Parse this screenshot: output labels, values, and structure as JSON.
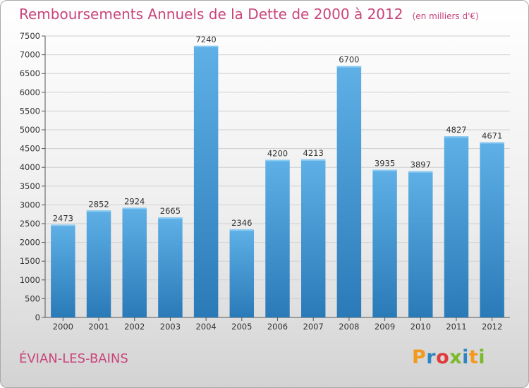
{
  "title": "Remboursements Annuels de la Dette de 2000 à 2012",
  "unit_note": "(en milliers d'€)",
  "commune": "ÉVIAN-LES-BAINS",
  "logo": {
    "text": "Proxiti",
    "letter_colors": [
      "#f29a1f",
      "#2e86c1",
      "#e03a3a",
      "#7ab929",
      "#2e86c1",
      "#f29a1f",
      "#7ab929"
    ]
  },
  "colors": {
    "bar_top": "#5eb0e6",
    "bar_bottom": "#2a7ab8",
    "title": "#c8457a",
    "grid": "#d0d0d0"
  },
  "chart_data": {
    "type": "bar",
    "categories": [
      "2000",
      "2001",
      "2002",
      "2003",
      "2004",
      "2005",
      "2006",
      "2007",
      "2008",
      "2009",
      "2010",
      "2011",
      "2012"
    ],
    "values": [
      2473,
      2852,
      2924,
      2665,
      7240,
      2346,
      4200,
      4213,
      6700,
      3935,
      3897,
      4827,
      4671
    ],
    "ylim": [
      0,
      7500
    ],
    "yticks": [
      0,
      500,
      1000,
      1500,
      2000,
      2500,
      3000,
      3500,
      4000,
      4500,
      5000,
      5500,
      6000,
      6500,
      7000,
      7500
    ],
    "grid": true,
    "data_labels": true
  }
}
